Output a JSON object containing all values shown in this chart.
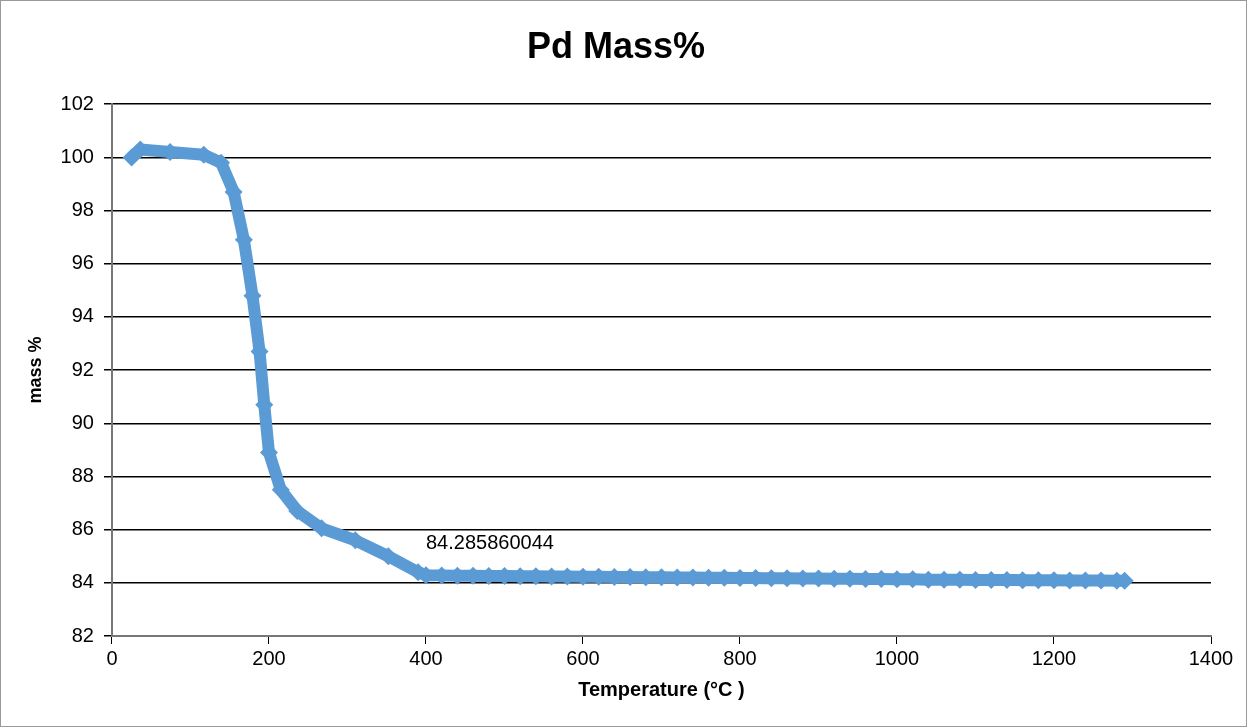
{
  "chart_data": {
    "type": "line",
    "title": "Pd Mass%",
    "xlabel": "Temperature (°C )",
    "ylabel": "mass %",
    "xlim": [
      0,
      1400
    ],
    "xticks": [
      0,
      200,
      400,
      600,
      800,
      1000,
      1200,
      1400
    ],
    "ylim": [
      82,
      102
    ],
    "yticks": [
      82,
      84,
      86,
      88,
      90,
      92,
      94,
      96,
      98,
      100,
      102
    ],
    "grid": "y",
    "legend": false,
    "marker": "diamond",
    "line_style": "solid",
    "series": [
      {
        "color": "#5b9bd5",
        "x": [
          25,
          36,
          74,
          117,
          139,
          155,
          168,
          179,
          188,
          194,
          200,
          215,
          236,
          267,
          310,
          352,
          390,
          400,
          420,
          440,
          460,
          480,
          500,
          520,
          540,
          560,
          580,
          600,
          620,
          640,
          660,
          680,
          700,
          720,
          740,
          760,
          780,
          800,
          820,
          840,
          860,
          880,
          900,
          920,
          940,
          960,
          980,
          1000,
          1020,
          1040,
          1060,
          1080,
          1100,
          1120,
          1140,
          1160,
          1180,
          1200,
          1220,
          1240,
          1260,
          1280,
          1290
        ],
        "values": [
          100,
          100.3,
          100.2,
          100.1,
          99.8,
          98.7,
          96.9,
          94.8,
          92.7,
          90.7,
          88.9,
          87.5,
          86.7,
          86.05,
          85.6,
          85,
          84.4,
          84.285860044,
          84.28,
          84.27,
          84.27,
          84.26,
          84.26,
          84.25,
          84.25,
          84.24,
          84.24,
          84.23,
          84.23,
          84.22,
          84.22,
          84.21,
          84.21,
          84.2,
          84.2,
          84.19,
          84.19,
          84.18,
          84.18,
          84.17,
          84.17,
          84.16,
          84.16,
          84.15,
          84.15,
          84.14,
          84.14,
          84.13,
          84.13,
          84.12,
          84.12,
          84.12,
          84.11,
          84.11,
          84.11,
          84.1,
          84.1,
          84.1,
          84.09,
          84.09,
          84.09,
          84.08,
          84.08
        ]
      }
    ],
    "annotations": [
      {
        "text": "84.285860044",
        "x": 400,
        "y": 84.285860044
      }
    ]
  }
}
